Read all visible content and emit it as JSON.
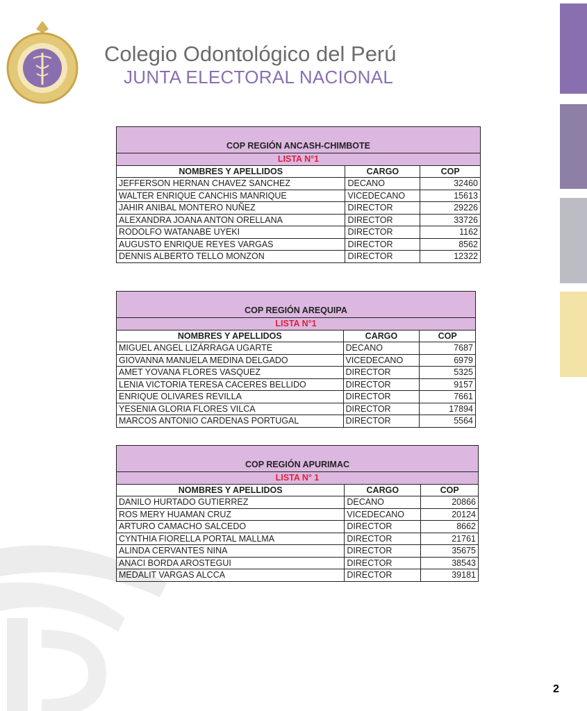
{
  "header": {
    "title": "Colegio Odontológico del Perú",
    "subtitle": "JUNTA ELECTORAL NACIONAL",
    "logo_text": "COLEGIO ODONTOLOGICO DEL PERU"
  },
  "colors": {
    "purple": "#8a6fb0",
    "mauve": "#8e7fa6",
    "gray": "#bcbcc4",
    "yellow": "#f3e3a6",
    "table_header": "#dcb8e0",
    "lista_red": "#e0203a"
  },
  "columns": [
    "NOMBRES Y APELLIDOS",
    "CARGO",
    "COP"
  ],
  "tables": [
    {
      "region": "COP REGIÓN ANCASH-CHIMBOTE",
      "lista": "LISTA N°1",
      "rows": [
        [
          "JEFFERSON HERNAN CHAVEZ SANCHEZ",
          "DECANO",
          "32460"
        ],
        [
          "WALTER ENRIQUE CANCHIS MANRIQUE",
          "VICEDECANO",
          "15613"
        ],
        [
          "JAHIR ANIBAL MONTERO NUÑEZ",
          "DIRECTOR",
          "29226"
        ],
        [
          "ALEXANDRA JOANA ANTON ORELLANA",
          "DIRECTOR",
          "33726"
        ],
        [
          "RODOLFO WATANABE UYEKI",
          "DIRECTOR",
          "1162"
        ],
        [
          "AUGUSTO ENRIQUE REYES VARGAS",
          "DIRECTOR",
          "8562"
        ],
        [
          "DENNIS ALBERTO TELLO MONZON",
          "DIRECTOR",
          "12322"
        ]
      ]
    },
    {
      "region": "COP REGIÓN AREQUIPA",
      "lista": "LISTA N°1",
      "rows": [
        [
          "MIGUEL ANGEL LIZÁRRAGA UGARTE",
          "DECANO",
          "7687"
        ],
        [
          "GIOVANNA MANUELA MEDINA DELGADO",
          "VICEDECANO",
          "6979"
        ],
        [
          "AMET YOVANA FLORES VASQUEZ",
          "DIRECTOR",
          "5325"
        ],
        [
          "LENIA VICTORIA TERESA CACERES BELLIDO",
          "DIRECTOR",
          "9157"
        ],
        [
          "ENRIQUE OLIVARES REVILLA",
          "DIRECTOR",
          "7661"
        ],
        [
          "YESENIA GLORIA FLORES VILCA",
          "DIRECTOR",
          "17894"
        ],
        [
          "MARCOS ANTONIO CARDENAS PORTUGAL",
          "DIRECTOR",
          "5564"
        ]
      ]
    },
    {
      "region": "COP REGIÓN APURIMAC",
      "lista": "LISTA N° 1",
      "rows": [
        [
          "DANILO HURTADO GUTIERREZ",
          "DECANO",
          "20866"
        ],
        [
          "ROS MERY HUAMAN CRUZ",
          "VICEDECANO",
          "20124"
        ],
        [
          "ARTURO CAMACHO SALCEDO",
          "DIRECTOR",
          "8662"
        ],
        [
          "CYNTHIA FIORELLA PORTAL MALLMA",
          "DIRECTOR",
          "21761"
        ],
        [
          "ALINDA CERVANTES NINA",
          "DIRECTOR",
          "35675"
        ],
        [
          "ANACI BORDA AROSTEGUI",
          "DIRECTOR",
          "38543"
        ],
        [
          "MEDALIT VARGAS ALCCA",
          "DIRECTOR",
          "39181"
        ]
      ]
    }
  ],
  "page_number": "2"
}
